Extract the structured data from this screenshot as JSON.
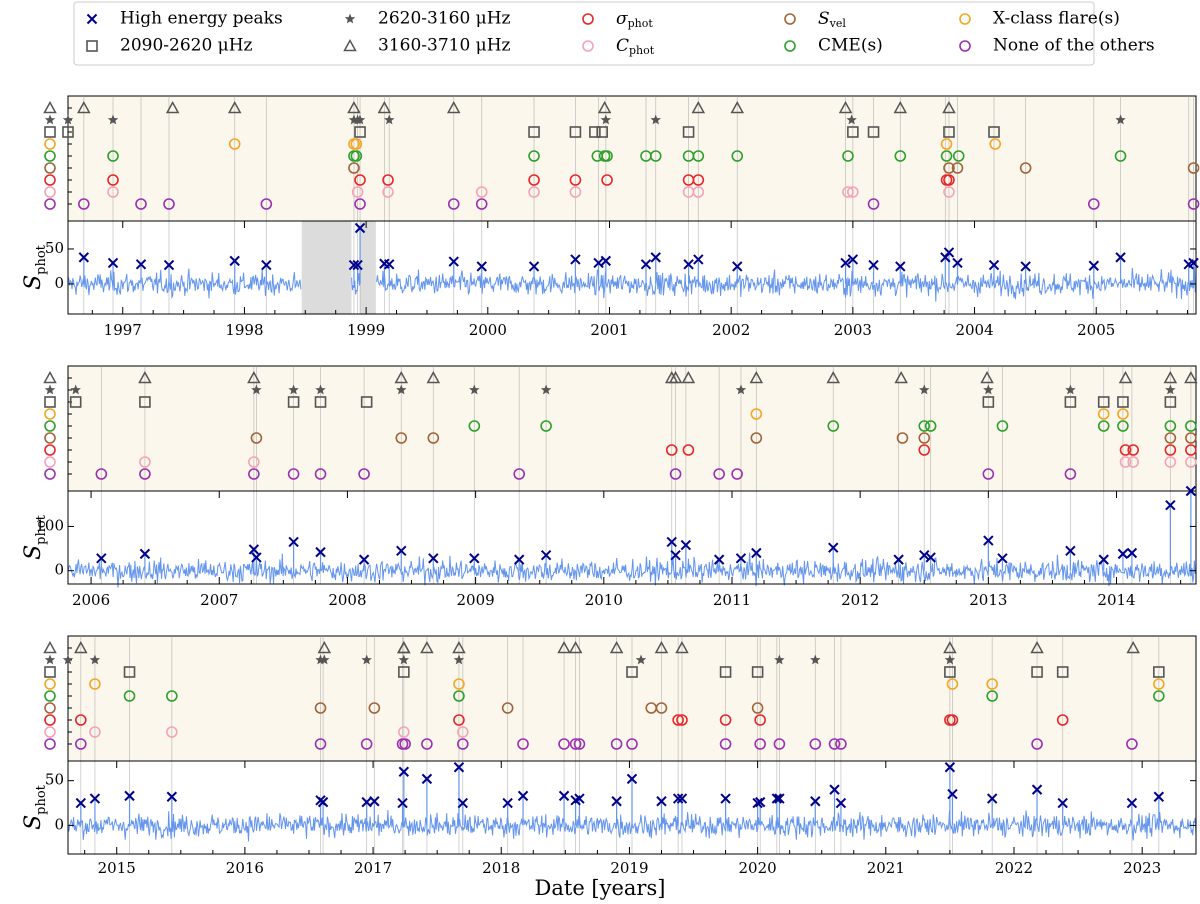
{
  "chart_data": {
    "type": "scatter",
    "xlabel": "Date [years]",
    "ylabel": "S_phot",
    "legend_position": "top",
    "legend": [
      {
        "key": "peak",
        "marker": "x",
        "color": "#00008b",
        "label": "High energy peaks"
      },
      {
        "key": "b2090",
        "marker": "square",
        "color": "#555555",
        "label": "2090-2620 μHz"
      },
      {
        "key": "b2620",
        "marker": "star",
        "color": "#555555",
        "label": "2620-3160 μHz"
      },
      {
        "key": "b3160",
        "marker": "triangle",
        "color": "#555555",
        "label": "3160-3710 μHz"
      },
      {
        "key": "sigma",
        "marker": "circle",
        "color": "#e8262a",
        "label": "σphot"
      },
      {
        "key": "cphot",
        "marker": "circle",
        "color": "#f5a3b8",
        "label": "Cphot"
      },
      {
        "key": "svel",
        "marker": "circle",
        "color": "#a0643c",
        "label": "Svel"
      },
      {
        "key": "cme",
        "marker": "circle",
        "color": "#2ca02c",
        "label": "CME(s)"
      },
      {
        "key": "xflare",
        "marker": "circle",
        "color": "#f5a623",
        "label": "X-class flare(s)"
      },
      {
        "key": "none",
        "marker": "circle",
        "color": "#9b30b0",
        "label": "None of the others"
      }
    ],
    "panels": [
      {
        "xlim": [
          1996.55,
          2005.82
        ],
        "ylim": [
          -43,
          90
        ],
        "yticks": [
          0,
          50
        ],
        "xticks": [
          1997,
          1998,
          1999,
          2000,
          2001,
          2002,
          2003,
          2004,
          2005
        ],
        "gaps": [
          [
            1998.47,
            1998.88
          ],
          [
            1998.95,
            1999.08
          ]
        ],
        "peaks": [
          [
            1996.68,
            38
          ],
          [
            1996.92,
            30
          ],
          [
            1997.15,
            28
          ],
          [
            1997.38,
            27
          ],
          [
            1997.92,
            33
          ],
          [
            1998.18,
            27
          ],
          [
            1998.9,
            27
          ],
          [
            1998.93,
            27
          ],
          [
            1998.95,
            80
          ],
          [
            1999.15,
            29
          ],
          [
            1999.19,
            28
          ],
          [
            1999.72,
            32
          ],
          [
            1999.95,
            25
          ],
          [
            2000.38,
            25
          ],
          [
            2000.72,
            35
          ],
          [
            2000.91,
            30
          ],
          [
            2000.97,
            33
          ],
          [
            2001.3,
            28
          ],
          [
            2001.38,
            38
          ],
          [
            2001.65,
            28
          ],
          [
            2001.73,
            35
          ],
          [
            2002.05,
            25
          ],
          [
            2002.94,
            30
          ],
          [
            2003.0,
            35
          ],
          [
            2003.17,
            27
          ],
          [
            2003.39,
            25
          ],
          [
            2003.76,
            38
          ],
          [
            2003.79,
            45
          ],
          [
            2003.86,
            30
          ],
          [
            2004.16,
            27
          ],
          [
            2004.42,
            25
          ],
          [
            2004.98,
            26
          ],
          [
            2005.2,
            38
          ],
          [
            2005.76,
            28
          ],
          [
            2005.8,
            30
          ]
        ],
        "events": {
          "b3160": [
            1996.68,
            1997.41,
            1997.92,
            1998.9,
            1999.15,
            1999.72,
            2000.96,
            2001.73,
            2002.05,
            2002.94,
            2003.39,
            2003.79
          ],
          "b2620": [
            1996.55,
            1996.92,
            1998.9,
            1998.93,
            1998.95,
            1999.19,
            2000.97,
            2001.38,
            2002.99,
            2005.2
          ],
          "b2090": [
            1996.55,
            1998.95,
            2000.38,
            2000.72,
            2000.88,
            2000.94,
            2001.65,
            2003.0,
            2003.17,
            2003.79,
            2004.16
          ],
          "xflare": [
            1997.92,
            1998.9,
            1998.92,
            2003.77,
            2004.17
          ],
          "cme": [
            1996.92,
            1998.9,
            1998.92,
            2000.38,
            2000.9,
            2000.96,
            2000.98,
            2001.3,
            2001.38,
            2001.65,
            2001.73,
            2002.05,
            2002.96,
            2003.39,
            2003.77,
            2003.87,
            2005.2
          ],
          "svel": [
            1998.9,
            2003.79,
            2003.86,
            2004.42,
            2005.8
          ],
          "sigma": [
            1996.92,
            1998.95,
            1999.18,
            2000.38,
            2000.72,
            2000.98,
            2001.65,
            2001.73,
            2003.77,
            2003.79
          ],
          "cphot": [
            1996.92,
            1998.93,
            1999.18,
            1999.95,
            2000.38,
            2000.72,
            2001.65,
            2001.73,
            2002.96,
            2003.0,
            2003.79
          ],
          "none": [
            1996.68,
            1997.15,
            1997.38,
            1998.18,
            1998.95,
            1999.72,
            1999.95,
            2003.17,
            2004.98,
            2005.8
          ]
        }
      },
      {
        "xlim": [
          2005.82,
          2014.62
        ],
        "ylim": [
          -30,
          180
        ],
        "yticks": [
          0,
          100
        ],
        "xticks": [
          2006,
          2007,
          2008,
          2009,
          2010,
          2011,
          2012,
          2013,
          2014
        ],
        "gaps": [],
        "peaks": [
          [
            2006.08,
            28
          ],
          [
            2006.42,
            38
          ],
          [
            2007.27,
            48
          ],
          [
            2007.29,
            30
          ],
          [
            2007.58,
            65
          ],
          [
            2007.79,
            42
          ],
          [
            2008.13,
            25
          ],
          [
            2008.42,
            45
          ],
          [
            2008.67,
            28
          ],
          [
            2008.99,
            28
          ],
          [
            2009.34,
            25
          ],
          [
            2009.55,
            35
          ],
          [
            2010.53,
            65
          ],
          [
            2010.56,
            35
          ],
          [
            2010.64,
            58
          ],
          [
            2010.9,
            25
          ],
          [
            2011.07,
            28
          ],
          [
            2011.19,
            40
          ],
          [
            2011.79,
            52
          ],
          [
            2012.3,
            25
          ],
          [
            2012.5,
            35
          ],
          [
            2012.55,
            30
          ],
          [
            2013.0,
            68
          ],
          [
            2013.11,
            28
          ],
          [
            2013.64,
            45
          ],
          [
            2013.9,
            25
          ],
          [
            2014.05,
            38
          ],
          [
            2014.12,
            40
          ],
          [
            2014.42,
            148
          ],
          [
            2014.58,
            180
          ]
        ],
        "events": {
          "b3160": [
            2006.42,
            2007.27,
            2008.42,
            2008.67,
            2010.53,
            2010.56,
            2010.66,
            2011.19,
            2011.79,
            2012.32,
            2012.99,
            2014.07,
            2014.42,
            2014.58
          ],
          "b2620": [
            2005.88,
            2007.29,
            2007.58,
            2007.79,
            2008.42,
            2008.99,
            2009.55,
            2011.07,
            2012.5,
            2013.0,
            2013.64,
            2014.42
          ],
          "b2090": [
            2005.88,
            2006.42,
            2007.58,
            2007.79,
            2008.15,
            2013.0,
            2013.64,
            2013.9,
            2014.05,
            2014.42
          ],
          "xflare": [
            2011.19,
            2013.9,
            2014.05
          ],
          "cme": [
            2008.99,
            2009.55,
            2011.79,
            2012.5,
            2012.55,
            2013.11,
            2013.9,
            2014.05,
            2014.42,
            2014.58
          ],
          "svel": [
            2007.29,
            2008.42,
            2008.67,
            2011.19,
            2012.33,
            2012.5,
            2014.42,
            2014.58
          ],
          "sigma": [
            2010.53,
            2010.66,
            2012.5,
            2014.07,
            2014.13,
            2014.42,
            2014.58
          ],
          "cphot": [
            2006.42,
            2007.27,
            2014.07,
            2014.13,
            2014.42,
            2014.58
          ],
          "none": [
            2006.08,
            2006.42,
            2007.27,
            2007.58,
            2007.79,
            2008.13,
            2009.34,
            2010.56,
            2010.9,
            2011.04,
            2013.0,
            2013.64
          ]
        }
      },
      {
        "xlim": [
          2014.62,
          2023.42
        ],
        "ylim": [
          -32,
          72
        ],
        "yticks": [
          0,
          50
        ],
        "xticks": [
          2015,
          2016,
          2017,
          2018,
          2019,
          2020,
          2021,
          2022,
          2023
        ],
        "gaps": [],
        "peaks": [
          [
            2014.72,
            25
          ],
          [
            2014.83,
            30
          ],
          [
            2015.1,
            33
          ],
          [
            2015.43,
            32
          ],
          [
            2016.59,
            28
          ],
          [
            2016.61,
            26
          ],
          [
            2016.95,
            26
          ],
          [
            2017.01,
            27
          ],
          [
            2017.23,
            25
          ],
          [
            2017.24,
            60
          ],
          [
            2017.42,
            52
          ],
          [
            2017.67,
            65
          ],
          [
            2017.7,
            25
          ],
          [
            2018.05,
            25
          ],
          [
            2018.17,
            33
          ],
          [
            2018.49,
            33
          ],
          [
            2018.58,
            28
          ],
          [
            2018.61,
            30
          ],
          [
            2018.9,
            27
          ],
          [
            2019.02,
            52
          ],
          [
            2019.25,
            27
          ],
          [
            2019.38,
            30
          ],
          [
            2019.41,
            30
          ],
          [
            2019.75,
            30
          ],
          [
            2020.0,
            25
          ],
          [
            2020.02,
            26
          ],
          [
            2020.15,
            30
          ],
          [
            2020.17,
            30
          ],
          [
            2020.45,
            27
          ],
          [
            2020.6,
            40
          ],
          [
            2020.65,
            25
          ],
          [
            2021.5,
            65
          ],
          [
            2021.52,
            35
          ],
          [
            2021.83,
            30
          ],
          [
            2022.18,
            40
          ],
          [
            2022.38,
            25
          ],
          [
            2022.92,
            25
          ],
          [
            2023.13,
            32
          ]
        ],
        "events": {
          "b3160": [
            2014.72,
            2016.62,
            2017.24,
            2017.24,
            2017.42,
            2017.67,
            2018.49,
            2018.58,
            2018.9,
            2019.25,
            2019.41,
            2021.5,
            2022.18,
            2022.93
          ],
          "b2620": [
            2014.62,
            2014.83,
            2016.59,
            2016.62,
            2016.95,
            2017.24,
            2017.67,
            2019.09,
            2020.17,
            2020.45,
            2021.5
          ],
          "b2090": [
            2015.1,
            2017.24,
            2019.02,
            2019.75,
            2020.0,
            2021.5,
            2022.18,
            2022.38,
            2023.13
          ],
          "xflare": [
            2014.83,
            2017.67,
            2021.52,
            2021.83,
            2023.13
          ],
          "cme": [
            2015.1,
            2015.43,
            2017.67,
            2021.83,
            2023.13
          ],
          "svel": [
            2016.59,
            2017.01,
            2018.05,
            2019.17,
            2019.25,
            2020.0
          ],
          "sigma": [
            2014.72,
            2017.67,
            2019.38,
            2019.41,
            2019.75,
            2020.02,
            2021.5,
            2021.52,
            2022.38
          ],
          "cphot": [
            2014.83,
            2015.43,
            2017.24,
            2017.7
          ],
          "none": [
            2014.72,
            2016.59,
            2016.95,
            2017.23,
            2017.25,
            2017.42,
            2017.7,
            2018.17,
            2018.49,
            2018.58,
            2018.61,
            2018.9,
            2019.02,
            2019.75,
            2020.02,
            2020.17,
            2020.45,
            2020.6,
            2020.65,
            2022.18,
            2022.92
          ]
        }
      }
    ]
  }
}
